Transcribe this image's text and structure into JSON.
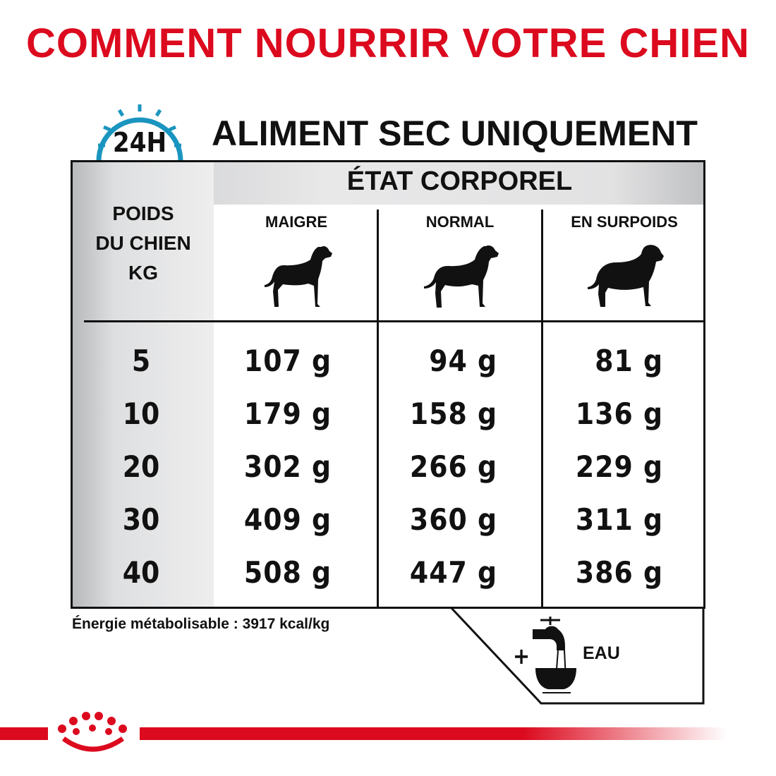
{
  "title": "COMMENT NOURRIR VOTRE CHIEN",
  "subtitle": "ALIMENT SEC UNIQUEMENT",
  "clock_label": "24H",
  "table": {
    "group_header": "ÉTAT CORPOREL",
    "weight_header": [
      "POIDS",
      "DU CHIEN",
      "KG"
    ],
    "columns": [
      "MAIGRE",
      "NORMAL",
      "EN SURPOIDS"
    ],
    "rows": [
      {
        "kg": "5",
        "values": [
          "107 g",
          "94 g",
          "81 g"
        ]
      },
      {
        "kg": "10",
        "values": [
          "179 g",
          "158 g",
          "136 g"
        ]
      },
      {
        "kg": "20",
        "values": [
          "302 g",
          "266 g",
          "229 g"
        ]
      },
      {
        "kg": "30",
        "values": [
          "409 g",
          "360 g",
          "311 g"
        ]
      },
      {
        "kg": "40",
        "values": [
          "508 g",
          "447 g",
          "386 g"
        ]
      }
    ]
  },
  "energy": "Énergie métabolisable : 3917 kcal/kg",
  "water": {
    "plus": "+",
    "label": "EAU"
  },
  "colors": {
    "brand_red": "#dc0a1e",
    "clock_blue": "#1a95bf"
  },
  "icons": [
    "clock-24h-icon",
    "thin-dog-icon",
    "normal-dog-icon",
    "overweight-dog-icon",
    "water-tap-bowl-icon",
    "royal-canin-crown-logo"
  ]
}
